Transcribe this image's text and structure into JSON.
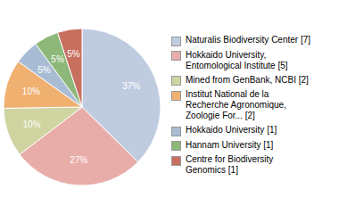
{
  "chart_data": {
    "type": "pie",
    "categories": [
      "Naturalis Biodiversity Center [7]",
      "Hokkaido University,\nEntomological Institute [5]",
      "Mined from GenBank, NCBI [2]",
      "Institut National de la\nRecherche Agronomique,\nZoologie For... [2]",
      "Hokkaido University [1]",
      "Hannam University [1]",
      "Centre for Biodiversity\nGenomics [1]"
    ],
    "values": [
      37,
      27,
      10,
      10,
      5,
      5,
      5
    ],
    "value_labels": [
      "37%",
      "27%",
      "10%",
      "10%",
      "5%",
      "5%",
      "5%"
    ],
    "data_labels": true,
    "colors": [
      "#bfcce0",
      "#e8ada8",
      "#cfd4a0",
      "#f0b070",
      "#a8bcd4",
      "#8db87a",
      "#c87060"
    ],
    "legend": "right"
  }
}
